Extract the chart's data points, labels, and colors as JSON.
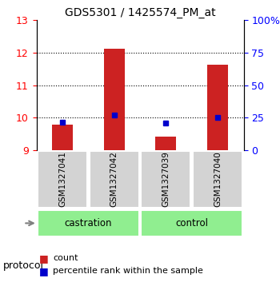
{
  "title": "GDS5301 / 1425574_PM_at",
  "samples": [
    "GSM1327041",
    "GSM1327042",
    "GSM1327039",
    "GSM1327040"
  ],
  "count_values": [
    9.79,
    12.12,
    9.42,
    11.62
  ],
  "percentile_values": [
    9.855,
    10.09,
    9.845,
    10.01
  ],
  "ylim_left": [
    9,
    13
  ],
  "ylim_right": [
    0,
    100
  ],
  "yticks_left": [
    9,
    10,
    11,
    12,
    13
  ],
  "yticks_right": [
    0,
    25,
    50,
    75,
    100
  ],
  "yticklabels_right": [
    "0",
    "25",
    "50",
    "75",
    "100%"
  ],
  "bar_bottom": 9.0,
  "bar_color": "#cc2222",
  "percentile_color": "#0000cc",
  "groups": [
    {
      "label": "castration",
      "samples": [
        0,
        1
      ],
      "color": "#90ee90"
    },
    {
      "label": "control",
      "samples": [
        2,
        3
      ],
      "color": "#90ee90"
    }
  ],
  "protocol_label": "protocol",
  "legend_count_label": "count",
  "legend_percentile_label": "percentile rank within the sample",
  "sample_box_color": "#d3d3d3",
  "background_color": "#ffffff",
  "bar_width": 0.4
}
